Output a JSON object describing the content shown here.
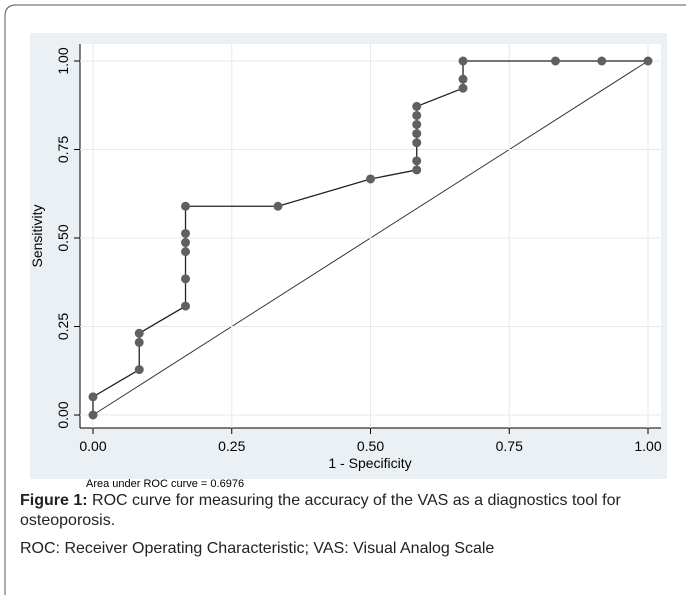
{
  "chart_data": {
    "type": "line",
    "x": [
      0,
      0,
      0.0833,
      0.0833,
      0.0833,
      0.1667,
      0.1667,
      0.1667,
      0.1667,
      0.1667,
      0.1667,
      0.3333,
      0.5,
      0.5833,
      0.5833,
      0.5833,
      0.5833,
      0.5833,
      0.5833,
      0.5833,
      0.6667,
      0.6667,
      0.6667,
      0.8333,
      0.9167,
      1
    ],
    "series": [
      {
        "name": "Sensitivity",
        "color": "#606060",
        "values": [
          0,
          0.0513,
          0.1282,
          0.2051,
          0.2308,
          0.3077,
          0.3846,
          0.4615,
          0.4872,
          0.5128,
          0.5897,
          0.5897,
          0.6667,
          0.6923,
          0.7179,
          0.7692,
          0.7949,
          0.8205,
          0.8462,
          0.8718,
          0.9231,
          0.9487,
          1,
          1,
          1,
          1
        ]
      }
    ],
    "xlabel": "1 - Specificity",
    "ylabel": "Sensitivity",
    "xlim": [
      0,
      1
    ],
    "ylim": [
      0,
      1
    ],
    "xticks": [
      {
        "value": 0,
        "label": "0.00"
      },
      {
        "value": 0.25,
        "label": "0.25"
      },
      {
        "value": 0.5,
        "label": "0.50"
      },
      {
        "value": 0.75,
        "label": "0.75"
      },
      {
        "value": 1,
        "label": "1.00"
      }
    ],
    "yticks": [
      {
        "value": 0,
        "label": "0.00"
      },
      {
        "value": 0.25,
        "label": "0.25"
      },
      {
        "value": 0.5,
        "label": "0.50"
      },
      {
        "value": 0.75,
        "label": "0.75"
      },
      {
        "value": 1,
        "label": "1.00"
      }
    ],
    "grid": true,
    "annotation": "Area under ROC curve = 0.6976"
  },
  "caption": {
    "label": "Figure 1:",
    "text": "ROC curve for measuring the accuracy of the VAS as a diagnostics tool for osteoporosis.",
    "note": "ROC: Receiver Operating Characteristic; VAS: Visual Analog Scale"
  }
}
